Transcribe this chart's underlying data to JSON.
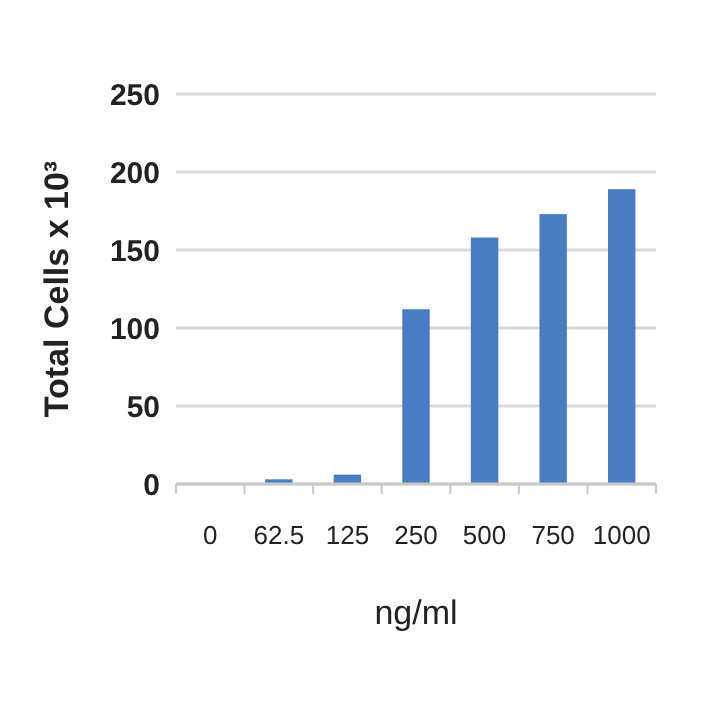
{
  "chart_data": {
    "type": "bar",
    "xlabel": "ng/ml",
    "ylabel": "Total Cells x 10³",
    "categories": [
      "0",
      "62.5",
      "125",
      "250",
      "500",
      "750",
      "1000"
    ],
    "values": [
      0,
      3,
      6,
      112,
      158,
      173,
      189
    ],
    "color": "#4a7cc4",
    "ylim": [
      0,
      250
    ],
    "yticks": [
      0,
      50,
      100,
      150,
      200,
      250
    ],
    "grid": "y"
  }
}
